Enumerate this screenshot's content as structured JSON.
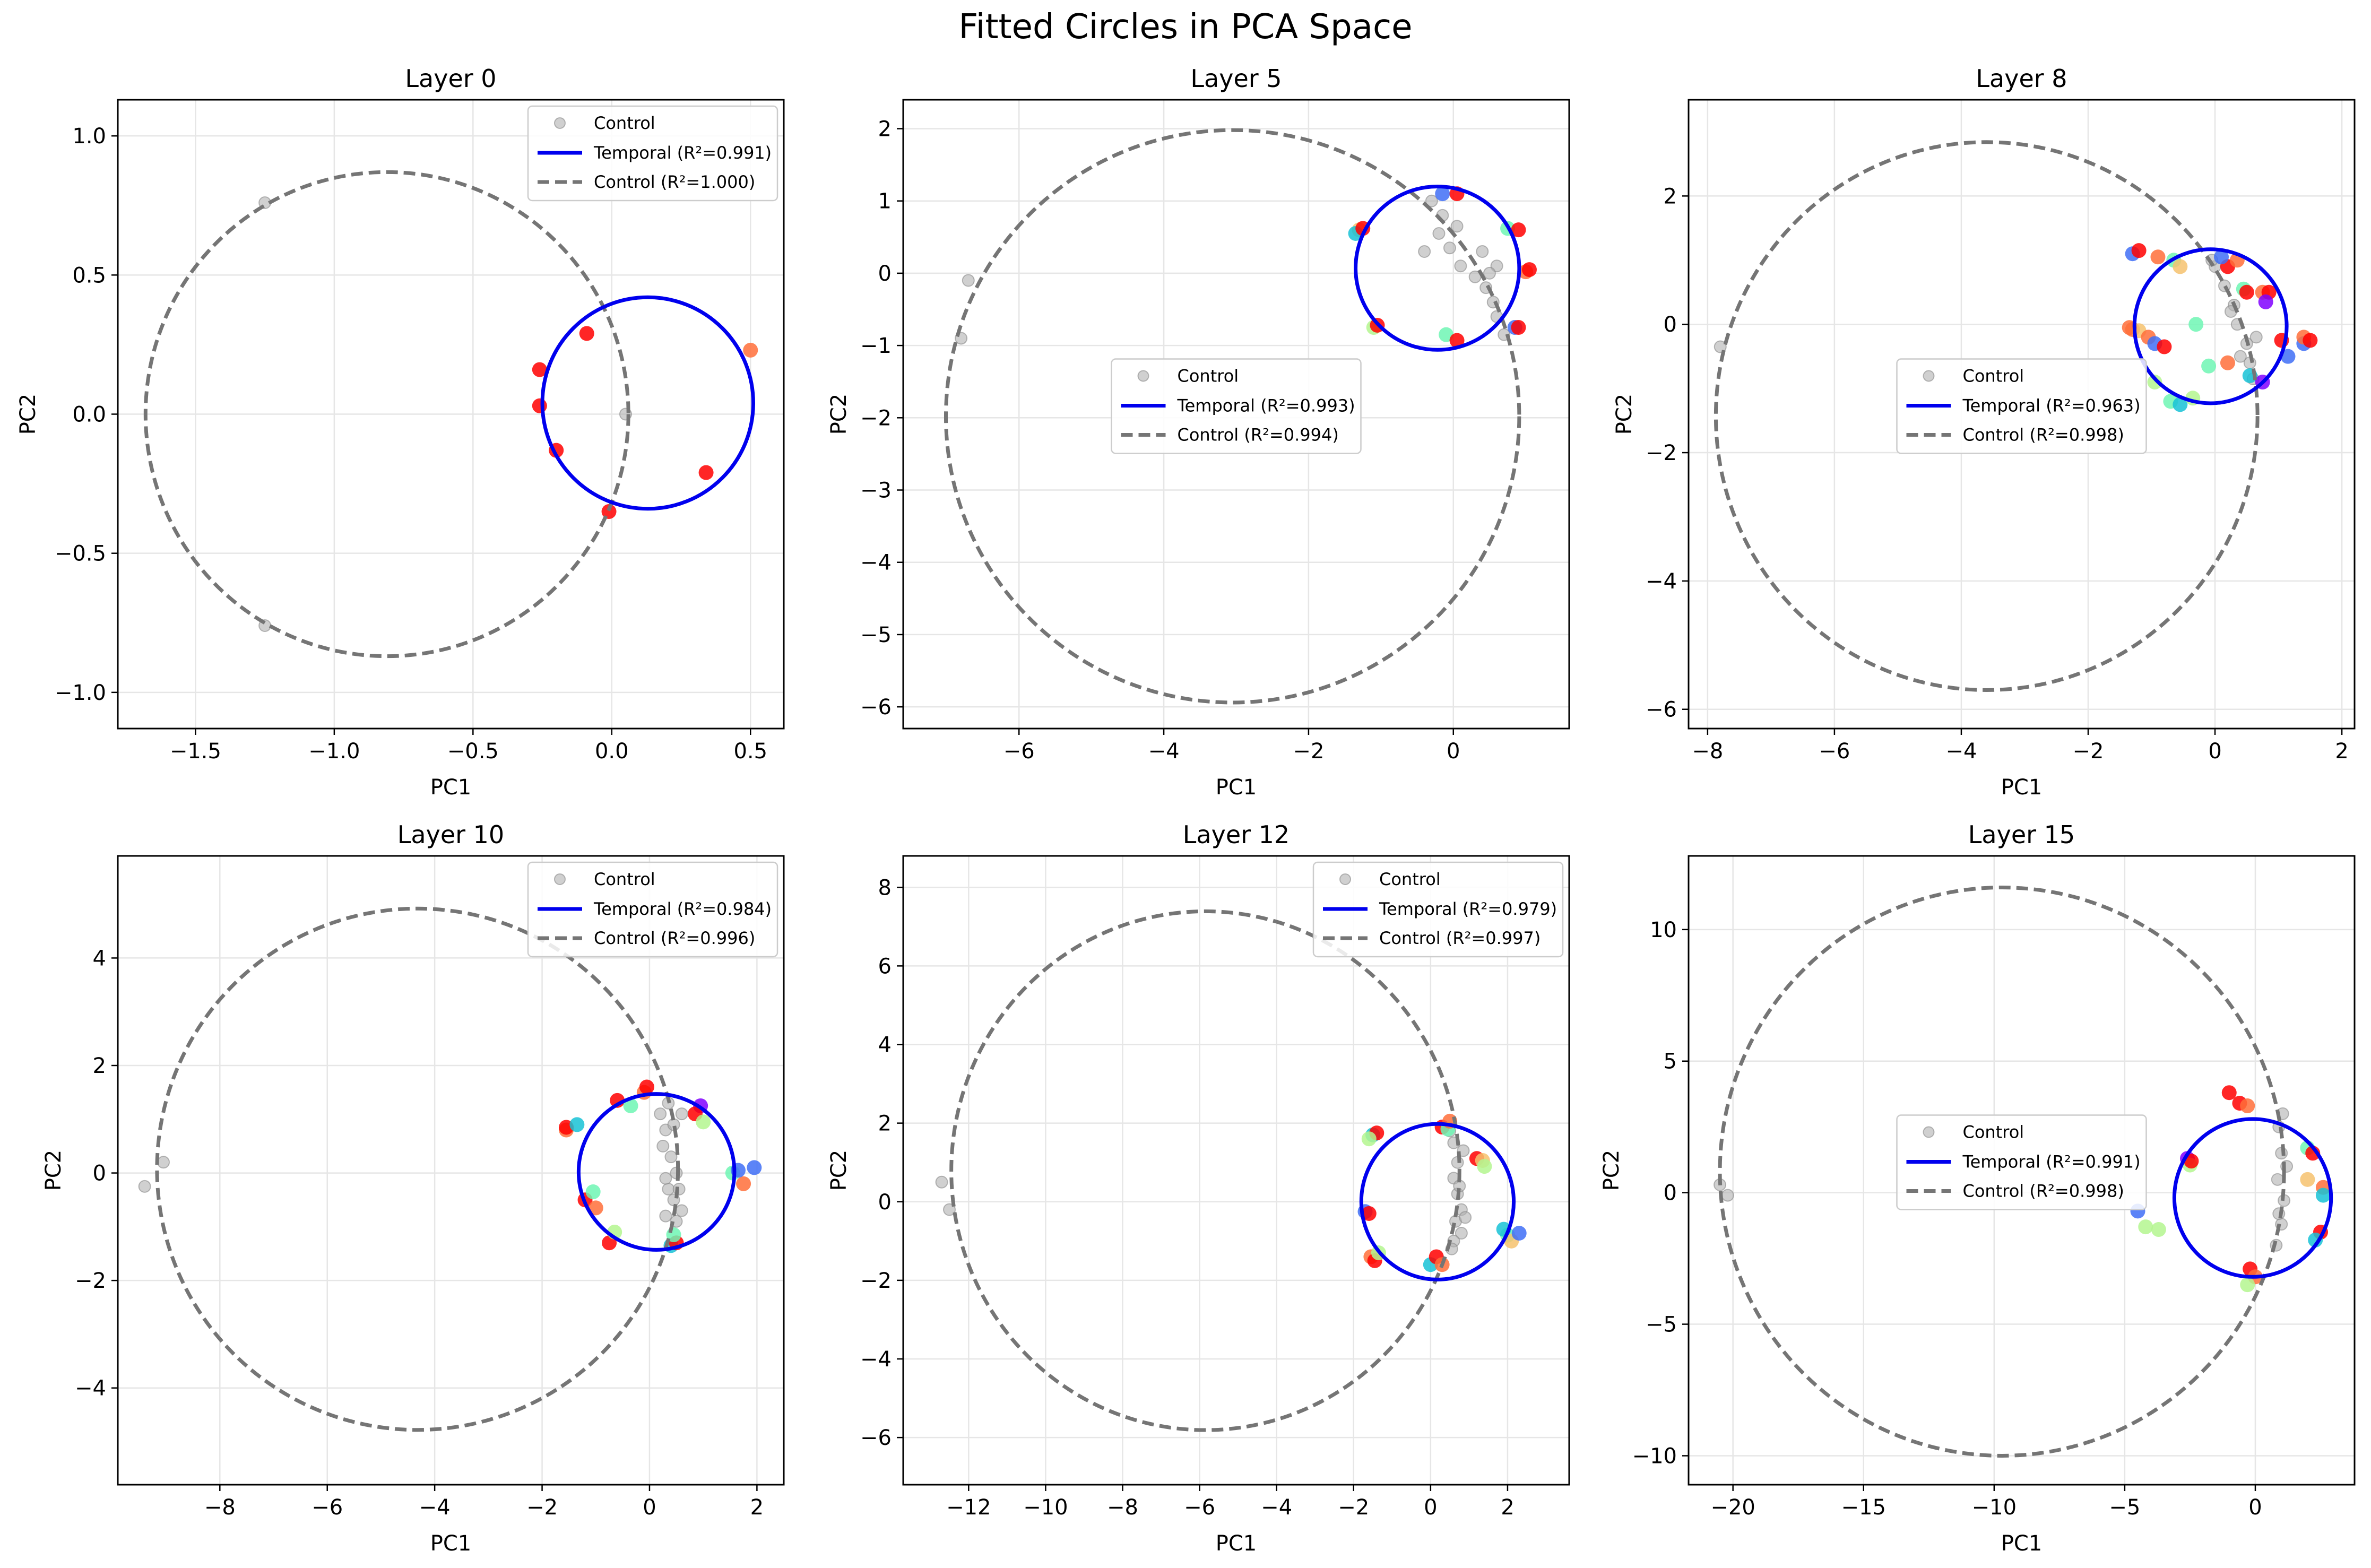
{
  "figure_title": "Fitted Circles in PCA Space",
  "colors": {
    "temporal_circle": "#0000ee",
    "control_circle": "#757575",
    "control_points": "#b0b0b0",
    "grid": "#e6e6e6",
    "temporal_palette": [
      "#8000ff",
      "#3f6ff6",
      "#17c2d6",
      "#6ef6b4",
      "#b4f68f",
      "#f6c26f",
      "#ff6f3a",
      "#ff0000"
    ]
  },
  "legend_labels": {
    "control_points": "Control"
  },
  "chart_data": [
    {
      "type": "scatter",
      "title": "Layer 0",
      "xlabel": "PC1",
      "ylabel": "PC2",
      "xlim": [
        -1.78,
        0.62
      ],
      "ylim": [
        -1.13,
        1.13
      ],
      "xticks": [
        -1.5,
        -1.0,
        -0.5,
        0.0,
        0.5
      ],
      "xticklabels": [
        "−1.5",
        "−1.0",
        "−0.5",
        "0.0",
        "0.5"
      ],
      "yticks": [
        -1.0,
        -0.5,
        0.0,
        0.5,
        1.0
      ],
      "yticklabels": [
        "−1.0",
        "−0.5",
        "0.0",
        "0.5",
        "1.0"
      ],
      "grid": true,
      "legend_position": "top-right",
      "temporal_circle": {
        "cx": 0.13,
        "cy": 0.04,
        "r": 0.38,
        "label": "Temporal (R²=0.991)"
      },
      "control_circle": {
        "cx": -0.81,
        "cy": 0.0,
        "r": 0.87,
        "label": "Control (R²=1.000)"
      },
      "control_points": [
        [
          0.05,
          0.0
        ],
        [
          -1.25,
          0.76
        ],
        [
          -1.25,
          -0.76
        ]
      ],
      "temporal_points": [
        [
          -0.26,
          0.16,
          7
        ],
        [
          -0.09,
          0.29,
          7
        ],
        [
          -0.26,
          0.03,
          7
        ],
        [
          -0.2,
          -0.13,
          7
        ],
        [
          -0.01,
          -0.35,
          7
        ],
        [
          0.34,
          -0.21,
          7
        ],
        [
          0.5,
          0.23,
          6
        ]
      ]
    },
    {
      "type": "scatter",
      "title": "Layer 5",
      "xlabel": "PC1",
      "ylabel": "PC2",
      "xlim": [
        -7.6,
        1.6
      ],
      "ylim": [
        -6.3,
        2.4
      ],
      "xticks": [
        -6,
        -4,
        -2,
        0
      ],
      "xticklabels": [
        "−6",
        "−4",
        "−2",
        "0"
      ],
      "yticks": [
        -6,
        -5,
        -4,
        -3,
        -2,
        -1,
        0,
        1,
        2
      ],
      "yticklabels": [
        "−6",
        "−5",
        "−4",
        "−3",
        "−2",
        "−1",
        "0",
        "1",
        "2"
      ],
      "grid": true,
      "legend_position": "center",
      "temporal_circle": {
        "cx": -0.22,
        "cy": 0.07,
        "r": 1.13,
        "label": "Temporal (R²=0.993)"
      },
      "control_circle": {
        "cx": -3.05,
        "cy": -1.98,
        "r": 3.96,
        "label": "Control (R²=0.994)"
      },
      "control_points": [
        [
          -6.7,
          -0.1
        ],
        [
          -6.8,
          -0.9
        ],
        [
          -0.3,
          1.0
        ],
        [
          -0.15,
          0.8
        ],
        [
          -0.2,
          0.55
        ],
        [
          -0.05,
          0.35
        ],
        [
          0.1,
          0.1
        ],
        [
          0.3,
          -0.05
        ],
        [
          0.45,
          -0.2
        ],
        [
          0.55,
          -0.4
        ],
        [
          0.6,
          -0.6
        ],
        [
          0.7,
          -0.85
        ],
        [
          0.6,
          0.1
        ],
        [
          0.4,
          0.3
        ],
        [
          -0.4,
          0.3
        ],
        [
          0.05,
          0.65
        ],
        [
          0.5,
          0.0
        ]
      ],
      "temporal_points": [
        [
          -1.3,
          0.6,
          5
        ],
        [
          -1.35,
          0.55,
          2
        ],
        [
          -1.25,
          0.62,
          7
        ],
        [
          -1.1,
          -0.75,
          4
        ],
        [
          -1.05,
          -0.72,
          7
        ],
        [
          -0.15,
          1.1,
          1
        ],
        [
          0.05,
          1.1,
          7
        ],
        [
          -0.1,
          -0.85,
          3
        ],
        [
          0.05,
          -0.93,
          7
        ],
        [
          0.75,
          0.62,
          3
        ],
        [
          0.9,
          0.6,
          7
        ],
        [
          1.0,
          0.02,
          6
        ],
        [
          1.05,
          0.05,
          7
        ],
        [
          0.85,
          -0.75,
          1
        ],
        [
          0.9,
          -0.75,
          7
        ]
      ]
    },
    {
      "type": "scatter",
      "title": "Layer 8",
      "xlabel": "PC1",
      "ylabel": "PC2",
      "xlim": [
        -8.3,
        2.2
      ],
      "ylim": [
        -6.3,
        3.5
      ],
      "xticks": [
        -8,
        -6,
        -4,
        -2,
        0,
        2
      ],
      "xticklabels": [
        "−8",
        "−6",
        "−4",
        "−2",
        "0",
        "2"
      ],
      "yticks": [
        -6,
        -4,
        -2,
        0,
        2
      ],
      "yticklabels": [
        "−6",
        "−4",
        "−2",
        "0",
        "2"
      ],
      "grid": true,
      "legend_position": "center",
      "temporal_circle": {
        "cx": -0.07,
        "cy": -0.03,
        "r": 1.2,
        "label": "Temporal (R²=0.963)"
      },
      "control_circle": {
        "cx": -3.6,
        "cy": -1.43,
        "r": 4.27,
        "label": "Control (R²=0.998)"
      },
      "control_points": [
        [
          -7.8,
          -0.35
        ],
        [
          0.0,
          0.9
        ],
        [
          0.15,
          0.6
        ],
        [
          0.3,
          0.3
        ],
        [
          0.35,
          0.0
        ],
        [
          0.5,
          -0.3
        ],
        [
          0.55,
          -0.6
        ],
        [
          0.6,
          -0.85
        ],
        [
          0.4,
          -0.5
        ],
        [
          0.25,
          0.2
        ],
        [
          0.65,
          -0.2
        ],
        [
          -0.05,
          1.0
        ]
      ],
      "temporal_points": [
        [
          -1.3,
          -0.08,
          6
        ],
        [
          -1.2,
          -0.1,
          5
        ],
        [
          -1.05,
          -0.2,
          6
        ],
        [
          -0.95,
          -0.3,
          1
        ],
        [
          -0.8,
          -0.35,
          7
        ],
        [
          -1.35,
          -0.05,
          6
        ],
        [
          -1.3,
          1.1,
          1
        ],
        [
          -1.2,
          1.15,
          7
        ],
        [
          -0.9,
          1.05,
          6
        ],
        [
          -0.65,
          1.0,
          3
        ],
        [
          -0.55,
          0.9,
          5
        ],
        [
          -0.95,
          -0.9,
          4
        ],
        [
          -0.7,
          -1.2,
          3
        ],
        [
          -0.55,
          -1.25,
          2
        ],
        [
          -0.35,
          -1.15,
          4
        ],
        [
          -0.1,
          -0.65,
          3
        ],
        [
          0.2,
          -0.6,
          6
        ],
        [
          0.2,
          0.9,
          7
        ],
        [
          0.35,
          1.0,
          6
        ],
        [
          0.1,
          1.05,
          1
        ],
        [
          0.45,
          0.55,
          3
        ],
        [
          0.5,
          0.5,
          7
        ],
        [
          0.55,
          -0.8,
          2
        ],
        [
          0.75,
          0.5,
          6
        ],
        [
          0.85,
          0.5,
          7
        ],
        [
          0.8,
          0.35,
          0
        ],
        [
          0.75,
          -0.9,
          0
        ],
        [
          1.05,
          -0.25,
          7
        ],
        [
          1.15,
          -0.5,
          1
        ],
        [
          1.4,
          -0.3,
          1
        ],
        [
          1.4,
          -0.2,
          6
        ],
        [
          1.5,
          -0.25,
          7
        ],
        [
          -0.3,
          0.0,
          3
        ]
      ]
    },
    {
      "type": "scatter",
      "title": "Layer 10",
      "xlabel": "PC1",
      "ylabel": "PC2",
      "xlim": [
        -9.9,
        2.5
      ],
      "ylim": [
        -5.8,
        5.9
      ],
      "xticks": [
        -8,
        -6,
        -4,
        -2,
        0,
        2
      ],
      "xticklabels": [
        "−8",
        "−6",
        "−4",
        "−2",
        "0",
        "2"
      ],
      "yticks": [
        -4,
        -2,
        0,
        2,
        4
      ],
      "yticklabels": [
        "−4",
        "−2",
        "0",
        "2",
        "4"
      ],
      "grid": true,
      "legend_position": "top-right",
      "temporal_circle": {
        "cx": 0.13,
        "cy": 0.02,
        "r": 1.45,
        "label": "Temporal (R²=0.984)"
      },
      "control_circle": {
        "cx": -4.32,
        "cy": 0.07,
        "r": 4.85,
        "label": "Control (R²=0.996)"
      },
      "control_points": [
        [
          -9.4,
          -0.25
        ],
        [
          -9.05,
          0.2
        ],
        [
          0.2,
          1.1
        ],
        [
          0.3,
          0.8
        ],
        [
          0.25,
          0.5
        ],
        [
          0.4,
          0.3
        ],
        [
          0.5,
          0.0
        ],
        [
          0.35,
          -0.3
        ],
        [
          0.45,
          -0.5
        ],
        [
          0.3,
          -0.8
        ],
        [
          0.5,
          -0.9
        ],
        [
          0.6,
          -0.7
        ],
        [
          0.45,
          0.9
        ],
        [
          0.6,
          1.1
        ],
        [
          0.3,
          -0.1
        ],
        [
          0.55,
          -0.3
        ],
        [
          0.35,
          1.3
        ]
      ],
      "temporal_points": [
        [
          -1.55,
          0.8,
          6
        ],
        [
          -1.55,
          0.85,
          7
        ],
        [
          -1.35,
          0.9,
          2
        ],
        [
          -1.2,
          -0.5,
          7
        ],
        [
          -1.05,
          -0.35,
          3
        ],
        [
          -1.0,
          -0.65,
          6
        ],
        [
          -0.75,
          -1.3,
          7
        ],
        [
          -0.65,
          -1.1,
          4
        ],
        [
          -0.6,
          1.35,
          7
        ],
        [
          -0.35,
          1.25,
          3
        ],
        [
          -0.1,
          1.5,
          6
        ],
        [
          -0.05,
          1.6,
          7
        ],
        [
          0.4,
          -1.35,
          2
        ],
        [
          0.5,
          -1.3,
          7
        ],
        [
          0.45,
          -1.15,
          3
        ],
        [
          0.95,
          1.25,
          0
        ],
        [
          0.85,
          1.1,
          7
        ],
        [
          1.0,
          0.95,
          4
        ],
        [
          1.55,
          0.0,
          3
        ],
        [
          1.75,
          -0.2,
          6
        ],
        [
          1.95,
          0.1,
          1
        ],
        [
          1.65,
          0.05,
          1
        ]
      ]
    },
    {
      "type": "scatter",
      "title": "Layer 12",
      "xlabel": "PC1",
      "ylabel": "PC2",
      "xlim": [
        -13.7,
        3.6
      ],
      "ylim": [
        -7.2,
        8.8
      ],
      "xticks": [
        -12,
        -10,
        -8,
        -6,
        -4,
        -2,
        0,
        2
      ],
      "xticklabels": [
        "−12",
        "−10",
        "−8",
        "−6",
        "−4",
        "−2",
        "0",
        "2"
      ],
      "yticks": [
        -6,
        -4,
        -2,
        0,
        2,
        4,
        6,
        8
      ],
      "yticklabels": [
        "−6",
        "−4",
        "−2",
        "0",
        "2",
        "4",
        "6",
        "8"
      ],
      "grid": true,
      "legend_position": "top-right",
      "temporal_circle": {
        "cx": 0.18,
        "cy": 0.0,
        "r": 1.98,
        "label": "Temporal (R²=0.979)"
      },
      "control_circle": {
        "cx": -5.85,
        "cy": 0.79,
        "r": 6.6,
        "label": "Control (R²=0.997)"
      },
      "control_points": [
        [
          -12.7,
          0.5
        ],
        [
          -12.5,
          -0.2
        ],
        [
          0.6,
          1.5
        ],
        [
          0.7,
          1.0
        ],
        [
          0.6,
          0.6
        ],
        [
          0.7,
          0.2
        ],
        [
          0.8,
          -0.2
        ],
        [
          0.65,
          -0.5
        ],
        [
          0.8,
          -0.8
        ],
        [
          0.6,
          -1.0
        ],
        [
          0.75,
          0.4
        ],
        [
          0.9,
          -0.4
        ],
        [
          0.5,
          1.8
        ],
        [
          0.85,
          1.3
        ],
        [
          0.55,
          -1.2
        ]
      ],
      "temporal_points": [
        [
          -1.5,
          1.7,
          2
        ],
        [
          -1.4,
          1.75,
          7
        ],
        [
          -1.6,
          1.6,
          4
        ],
        [
          -1.7,
          -0.25,
          1
        ],
        [
          -1.6,
          -0.3,
          7
        ],
        [
          -1.55,
          -1.4,
          6
        ],
        [
          -1.45,
          -1.5,
          7
        ],
        [
          -1.35,
          -1.3,
          4
        ],
        [
          0.0,
          -1.6,
          2
        ],
        [
          0.15,
          -1.4,
          7
        ],
        [
          0.3,
          -1.6,
          6
        ],
        [
          0.3,
          1.9,
          7
        ],
        [
          0.45,
          1.85,
          3
        ],
        [
          0.5,
          2.05,
          6
        ],
        [
          1.2,
          1.1,
          7
        ],
        [
          1.35,
          1.05,
          5
        ],
        [
          1.4,
          0.9,
          4
        ],
        [
          2.0,
          -0.85,
          3
        ],
        [
          2.1,
          -1.0,
          5
        ],
        [
          2.3,
          -0.8,
          1
        ],
        [
          1.9,
          -0.7,
          2
        ]
      ]
    },
    {
      "type": "scatter",
      "title": "Layer 15",
      "xlabel": "PC1",
      "ylabel": "PC2",
      "xlim": [
        -21.7,
        3.8
      ],
      "ylim": [
        -11.1,
        12.8
      ],
      "xticks": [
        -20,
        -15,
        -10,
        -5,
        0
      ],
      "xticklabels": [
        "−20",
        "−15",
        "−10",
        "−5",
        "0"
      ],
      "yticks": [
        -10,
        -5,
        0,
        5,
        10
      ],
      "yticklabels": [
        "−10",
        "−5",
        "0",
        "5",
        "10"
      ],
      "grid": true,
      "legend_position": "center",
      "temporal_circle": {
        "cx": -0.1,
        "cy": -0.2,
        "r": 3.0,
        "label": "Temporal (R²=0.991)"
      },
      "control_circle": {
        "cx": -9.7,
        "cy": 0.8,
        "r": 10.8,
        "label": "Control (R²=0.998)"
      },
      "control_points": [
        [
          -20.5,
          0.3
        ],
        [
          -20.2,
          -0.1
        ],
        [
          0.9,
          2.5
        ],
        [
          1.0,
          1.5
        ],
        [
          0.85,
          0.5
        ],
        [
          1.1,
          -0.3
        ],
        [
          1.0,
          -1.2
        ],
        [
          0.8,
          -2.0
        ],
        [
          1.2,
          1.0
        ],
        [
          1.05,
          3.0
        ],
        [
          0.9,
          -0.8
        ]
      ],
      "temporal_points": [
        [
          -2.6,
          1.3,
          0
        ],
        [
          -2.5,
          1.05,
          4
        ],
        [
          -2.45,
          1.2,
          7
        ],
        [
          -4.5,
          -0.7,
          1
        ],
        [
          -4.2,
          -1.3,
          4
        ],
        [
          -3.7,
          -1.4,
          4
        ],
        [
          -1.0,
          3.8,
          7
        ],
        [
          -0.6,
          3.4,
          7
        ],
        [
          -0.3,
          3.3,
          6
        ],
        [
          -0.2,
          -2.9,
          7
        ],
        [
          0.0,
          -3.2,
          6
        ],
        [
          -0.3,
          -3.5,
          4
        ],
        [
          2.0,
          1.7,
          3
        ],
        [
          2.2,
          1.5,
          7
        ],
        [
          2.6,
          0.2,
          6
        ],
        [
          2.5,
          -1.5,
          7
        ],
        [
          2.3,
          -1.8,
          2
        ],
        [
          2.0,
          0.5,
          5
        ],
        [
          2.6,
          -0.1,
          2
        ]
      ]
    }
  ]
}
